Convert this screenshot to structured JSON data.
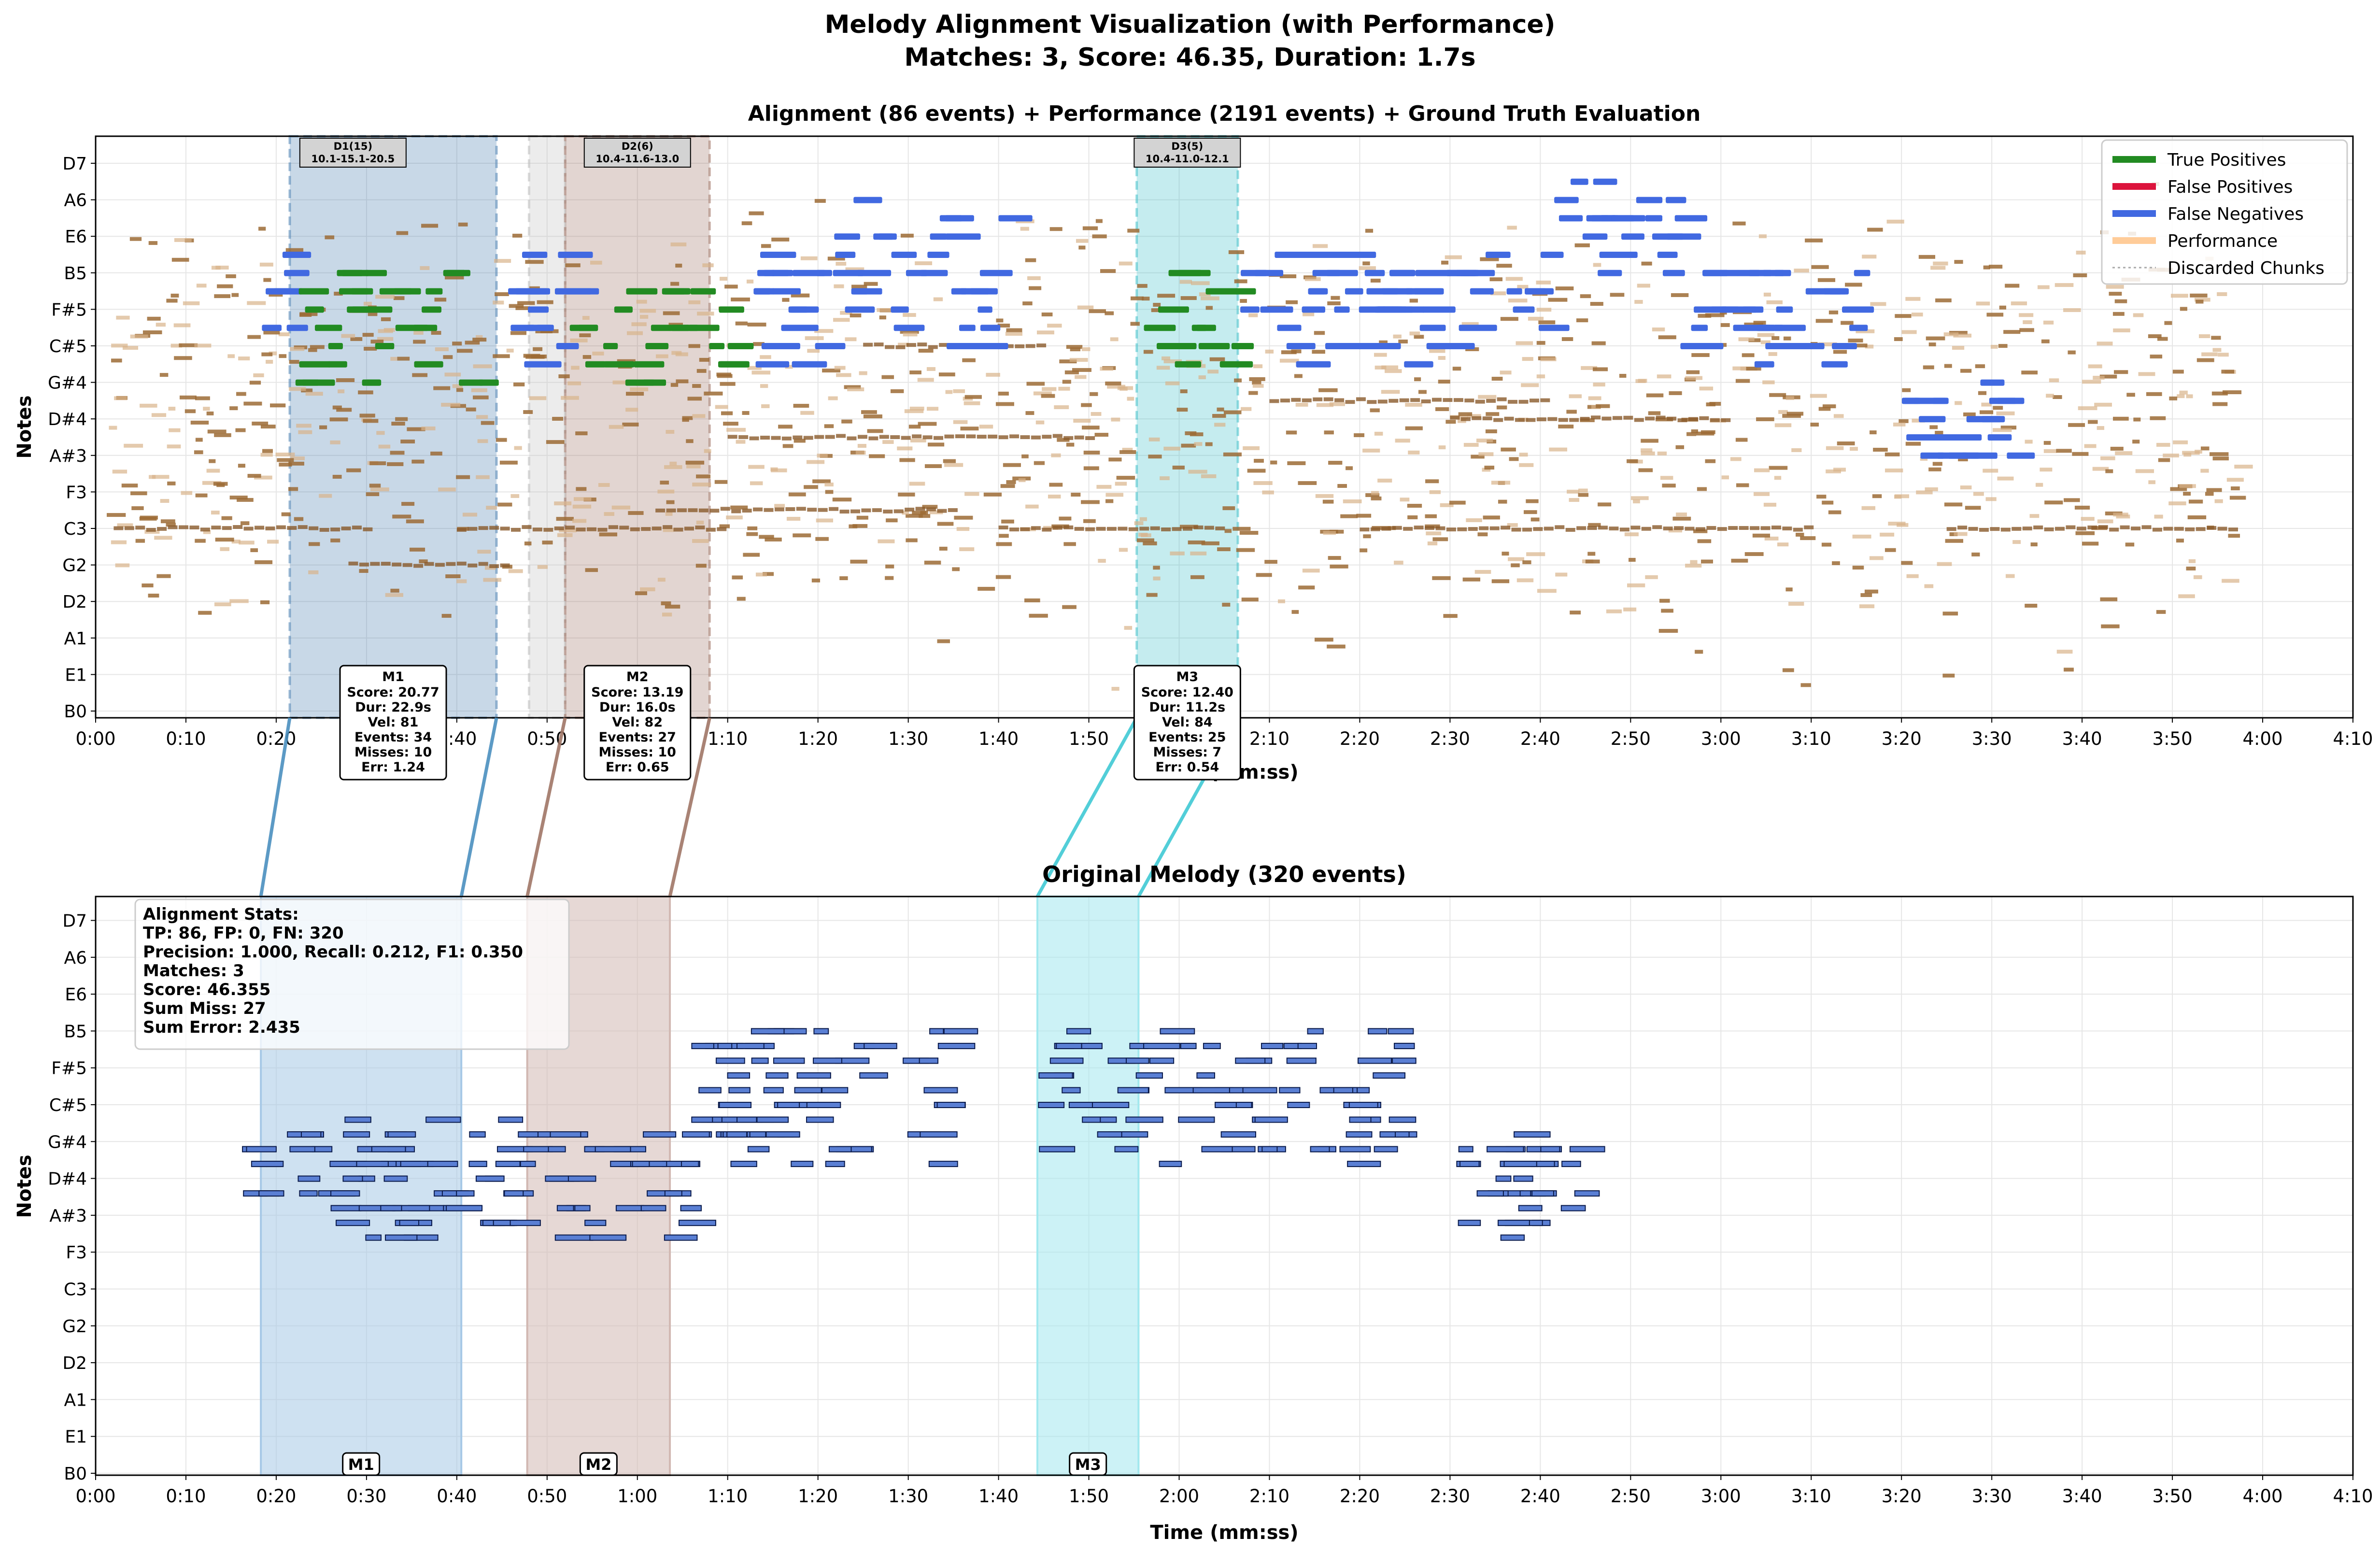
{
  "figure": {
    "title_line1": "Melody Alignment Visualization (with Performance)",
    "title_line2": "Matches: 3, Score: 46.35, Duration: 1.7s"
  },
  "chart_data": [
    {
      "type": "piano-roll",
      "title": "Alignment (86 events) + Performance (2191 events) + Ground Truth Evaluation",
      "xlabel": "Time (mm:ss)",
      "ylabel": "Notes",
      "xlim_seconds": [
        0,
        250
      ],
      "x_ticks": [
        "0:00",
        "0:10",
        "0:20",
        "0:30",
        "0:40",
        "0:50",
        "1:00",
        "1:10",
        "1:20",
        "1:30",
        "1:40",
        "1:50",
        "2:00",
        "2:10",
        "2:20",
        "2:30",
        "2:40",
        "2:50",
        "3:00",
        "3:10",
        "3:20",
        "3:30",
        "3:40",
        "3:50",
        "4:00",
        "4:10"
      ],
      "y_ticks": [
        "B0",
        "E1",
        "A1",
        "D2",
        "G2",
        "C3",
        "F3",
        "A#3",
        "D#4",
        "G#4",
        "C#5",
        "F#5",
        "B5",
        "E6",
        "A6",
        "D7"
      ],
      "legend": {
        "position": "top-right",
        "items": [
          {
            "label": "True Positives",
            "color": "#228b22"
          },
          {
            "label": "False Positives",
            "color": "#dc143c"
          },
          {
            "label": "False Negatives",
            "color": "#4169e1"
          },
          {
            "label": "Performance",
            "color": "#ffcc99"
          },
          {
            "label": "Discarded Chunks",
            "color": "#aaaaaa"
          }
        ]
      },
      "regions": [
        {
          "start": 21.5,
          "end": 44.4,
          "color": "#4a7fb0",
          "kind": "match",
          "boxlabel": "M1",
          "lines": [
            "Score: 20.77",
            "Dur: 22.9s",
            "Vel: 81",
            "Events: 34",
            "Misses: 10",
            "Err: 1.24"
          ]
        },
        {
          "start": 48.0,
          "end": 52.0,
          "color": "#bbbbbb",
          "kind": "discarded"
        },
        {
          "start": 52.0,
          "end": 68.0,
          "color": "#a07566",
          "kind": "match",
          "boxlabel": "M2",
          "lines": [
            "Score: 13.19",
            "Dur: 16.0s",
            "Vel: 82",
            "Events: 27",
            "Misses: 10",
            "Err: 0.65"
          ]
        },
        {
          "start": 115.3,
          "end": 126.5,
          "color": "#3fbfc9",
          "kind": "match",
          "boxlabel": "M3",
          "lines": [
            "Score: 12.40",
            "Dur: 11.2s",
            "Vel: 84",
            "Events: 25",
            "Misses: 7",
            "Err: 0.54"
          ]
        }
      ],
      "discarded_labels": [
        {
          "at": 28.5,
          "line1": "D1(15)",
          "line2": "10.1-15.1-20.5"
        },
        {
          "at": 60.0,
          "line1": "D2(6)",
          "line2": "10.4-11.6-13.0"
        },
        {
          "at": 120.9,
          "line1": "D3(5)",
          "line2": "10.4-11.0-12.1"
        }
      ],
      "true_positive_ranges": [
        [
          21.5,
          44.4
        ],
        [
          52.0,
          70.5
        ],
        [
          115.3,
          126.5
        ]
      ],
      "false_negative_ranges": [
        [
          18,
          21.5
        ],
        [
          44.4,
          52.0
        ],
        [
          70.5,
          100
        ],
        [
          126.5,
          160
        ],
        [
          160,
          195
        ],
        [
          200,
          213
        ]
      ],
      "performance_range": [
        1,
        237
      ]
    },
    {
      "type": "piano-roll",
      "title": "Original Melody (320 events)",
      "xlabel": "Time (mm:ss)",
      "ylabel": "Notes",
      "xlim_seconds": [
        0,
        250
      ],
      "x_ticks": [
        "0:00",
        "0:10",
        "0:20",
        "0:30",
        "0:40",
        "0:50",
        "1:00",
        "1:10",
        "1:20",
        "1:30",
        "1:40",
        "1:50",
        "2:00",
        "2:10",
        "2:20",
        "2:30",
        "2:40",
        "2:50",
        "3:00",
        "3:10",
        "3:20",
        "3:30",
        "3:40",
        "3:50",
        "4:00",
        "4:10"
      ],
      "y_ticks": [
        "B0",
        "E1",
        "A1",
        "D2",
        "G2",
        "C3",
        "F3",
        "A#3",
        "D#4",
        "G#4",
        "C#5",
        "F#5",
        "B5",
        "E6",
        "A6",
        "D7"
      ],
      "regions": [
        {
          "start": 18.3,
          "end": 40.5,
          "color": "#a6c8e6",
          "label": "M1"
        },
        {
          "start": 47.8,
          "end": 63.6,
          "color": "#d1b8b2",
          "label": "M2"
        },
        {
          "start": 104.3,
          "end": 115.5,
          "color": "#a2e8ee",
          "label": "M3"
        }
      ],
      "melody_segments": [
        [
          16,
          70.5
        ],
        [
          66,
          94
        ],
        [
          104.3,
          145
        ],
        [
          149,
          164
        ]
      ],
      "stats": {
        "heading": "Alignment Stats:",
        "line1": "TP: 86, FP: 0, FN: 320",
        "line2": "Precision: 1.000, Recall: 0.212, F1: 0.350",
        "line3": "Matches: 3",
        "line4": "Score: 46.355",
        "line5": "Sum Miss: 27",
        "line6": "Sum Error: 2.435"
      }
    }
  ]
}
